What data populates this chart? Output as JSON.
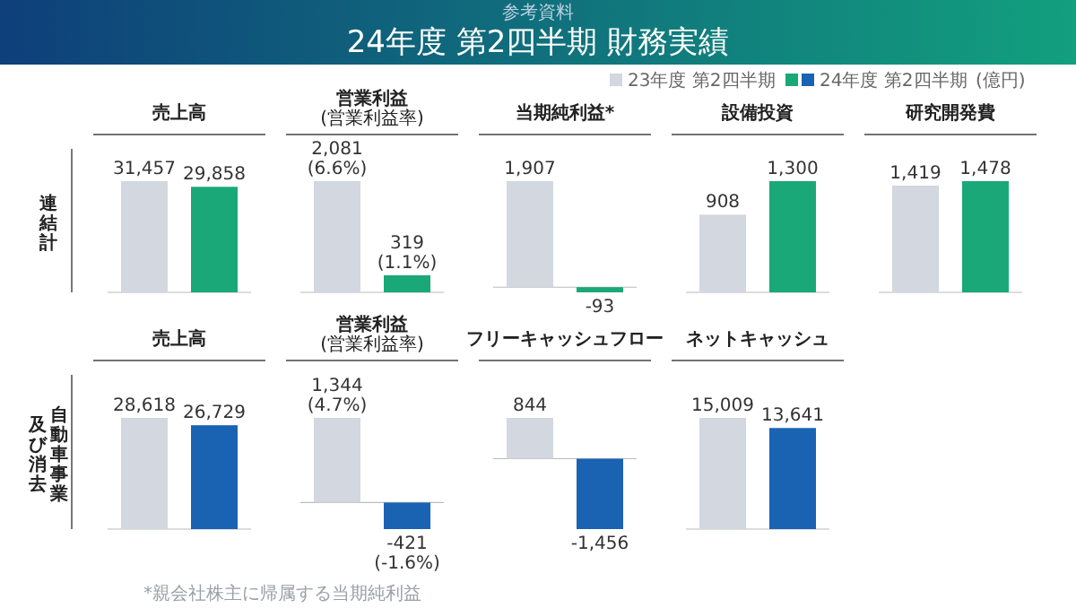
{
  "chart_data": [
    {
      "type": "other",
      "title": "24年度 第2四半期 財務実績",
      "subtitle": "参考資料",
      "annotations": [
        "*親会社株主に帰属する当期純利益"
      ]
    },
    {
      "type": "bar",
      "title": "売上高",
      "categories": [
        null
      ],
      "legend": "top right",
      "legend_title": "(億円)",
      "annotations": [
        "連結計"
      ],
      "series": [
        {
          "name": "23年度 第2四半期",
          "color": "#d3d7df",
          "values": [
            31457
          ],
          "value_labels": [
            "31,457"
          ]
        },
        {
          "name": "24年度 第2四半期",
          "color": "#1ba878",
          "values": [
            29858
          ],
          "value_labels": [
            "29,858"
          ]
        }
      ]
    },
    {
      "type": "bar",
      "title": "営業利益",
      "subtitle": "(営業利益率)",
      "categories": [
        null
      ],
      "series": [
        {
          "color": "#d3d7df",
          "values": [
            2081
          ],
          "value_labels": [
            "2,081\n(6.6%)"
          ]
        },
        {
          "color": "#1ba878",
          "values": [
            319
          ],
          "value_labels": [
            "319\n(1.1%)"
          ]
        }
      ]
    },
    {
      "type": "bar",
      "title": "当期純利益*",
      "categories": [
        null
      ],
      "series": [
        {
          "color": "#d3d7df",
          "values": [
            1907
          ],
          "value_labels": [
            "1,907"
          ]
        },
        {
          "color": "#1ba878",
          "values": [
            -93
          ],
          "value_labels": [
            "-93"
          ]
        }
      ]
    },
    {
      "type": "bar",
      "title": "設備投資",
      "categories": [
        null
      ],
      "series": [
        {
          "color": "#d3d7df",
          "values": [
            908
          ],
          "value_labels": [
            "908"
          ]
        },
        {
          "color": "#1ba878",
          "values": [
            1300
          ],
          "value_labels": [
            "1,300"
          ]
        }
      ]
    },
    {
      "type": "bar",
      "title": "研究開発費",
      "categories": [
        null
      ],
      "series": [
        {
          "color": "#d3d7df",
          "values": [
            1419
          ],
          "value_labels": [
            "1,419"
          ]
        },
        {
          "color": "#1ba878",
          "values": [
            1478
          ],
          "value_labels": [
            "1,478"
          ]
        }
      ]
    },
    {
      "type": "bar",
      "title": "売上高",
      "categories": [
        null
      ],
      "annotations": [
        "自動車事業",
        "及び消去"
      ],
      "series": [
        {
          "color": "#d3d7df",
          "values": [
            28618
          ],
          "value_labels": [
            "28,618"
          ]
        },
        {
          "color": "#1a63b3",
          "values": [
            26729
          ],
          "value_labels": [
            "26,729"
          ]
        }
      ]
    },
    {
      "type": "bar",
      "title": "営業利益",
      "subtitle": "(営業利益率)",
      "categories": [
        null
      ],
      "series": [
        {
          "color": "#d3d7df",
          "values": [
            1344
          ],
          "value_labels": [
            "1,344\n(4.7%)"
          ]
        },
        {
          "color": "#1a63b3",
          "values": [
            -421
          ],
          "value_labels": [
            "-421\n(-1.6%)"
          ]
        }
      ]
    },
    {
      "type": "bar",
      "title": "フリーキャッシュフロー",
      "categories": [
        null
      ],
      "series": [
        {
          "color": "#d3d7df",
          "values": [
            844
          ],
          "value_labels": [
            "844"
          ]
        },
        {
          "color": "#1a63b3",
          "values": [
            -1456
          ],
          "value_labels": [
            "-1,456"
          ]
        }
      ]
    },
    {
      "type": "bar",
      "title": "ネットキャッシュ",
      "categories": [
        null
      ],
      "series": [
        {
          "color": "#d3d7df",
          "values": [
            15009
          ],
          "value_labels": [
            "15,009"
          ]
        },
        {
          "color": "#1a63b3",
          "values": [
            13641
          ],
          "value_labels": [
            "13,641"
          ]
        }
      ]
    }
  ]
}
